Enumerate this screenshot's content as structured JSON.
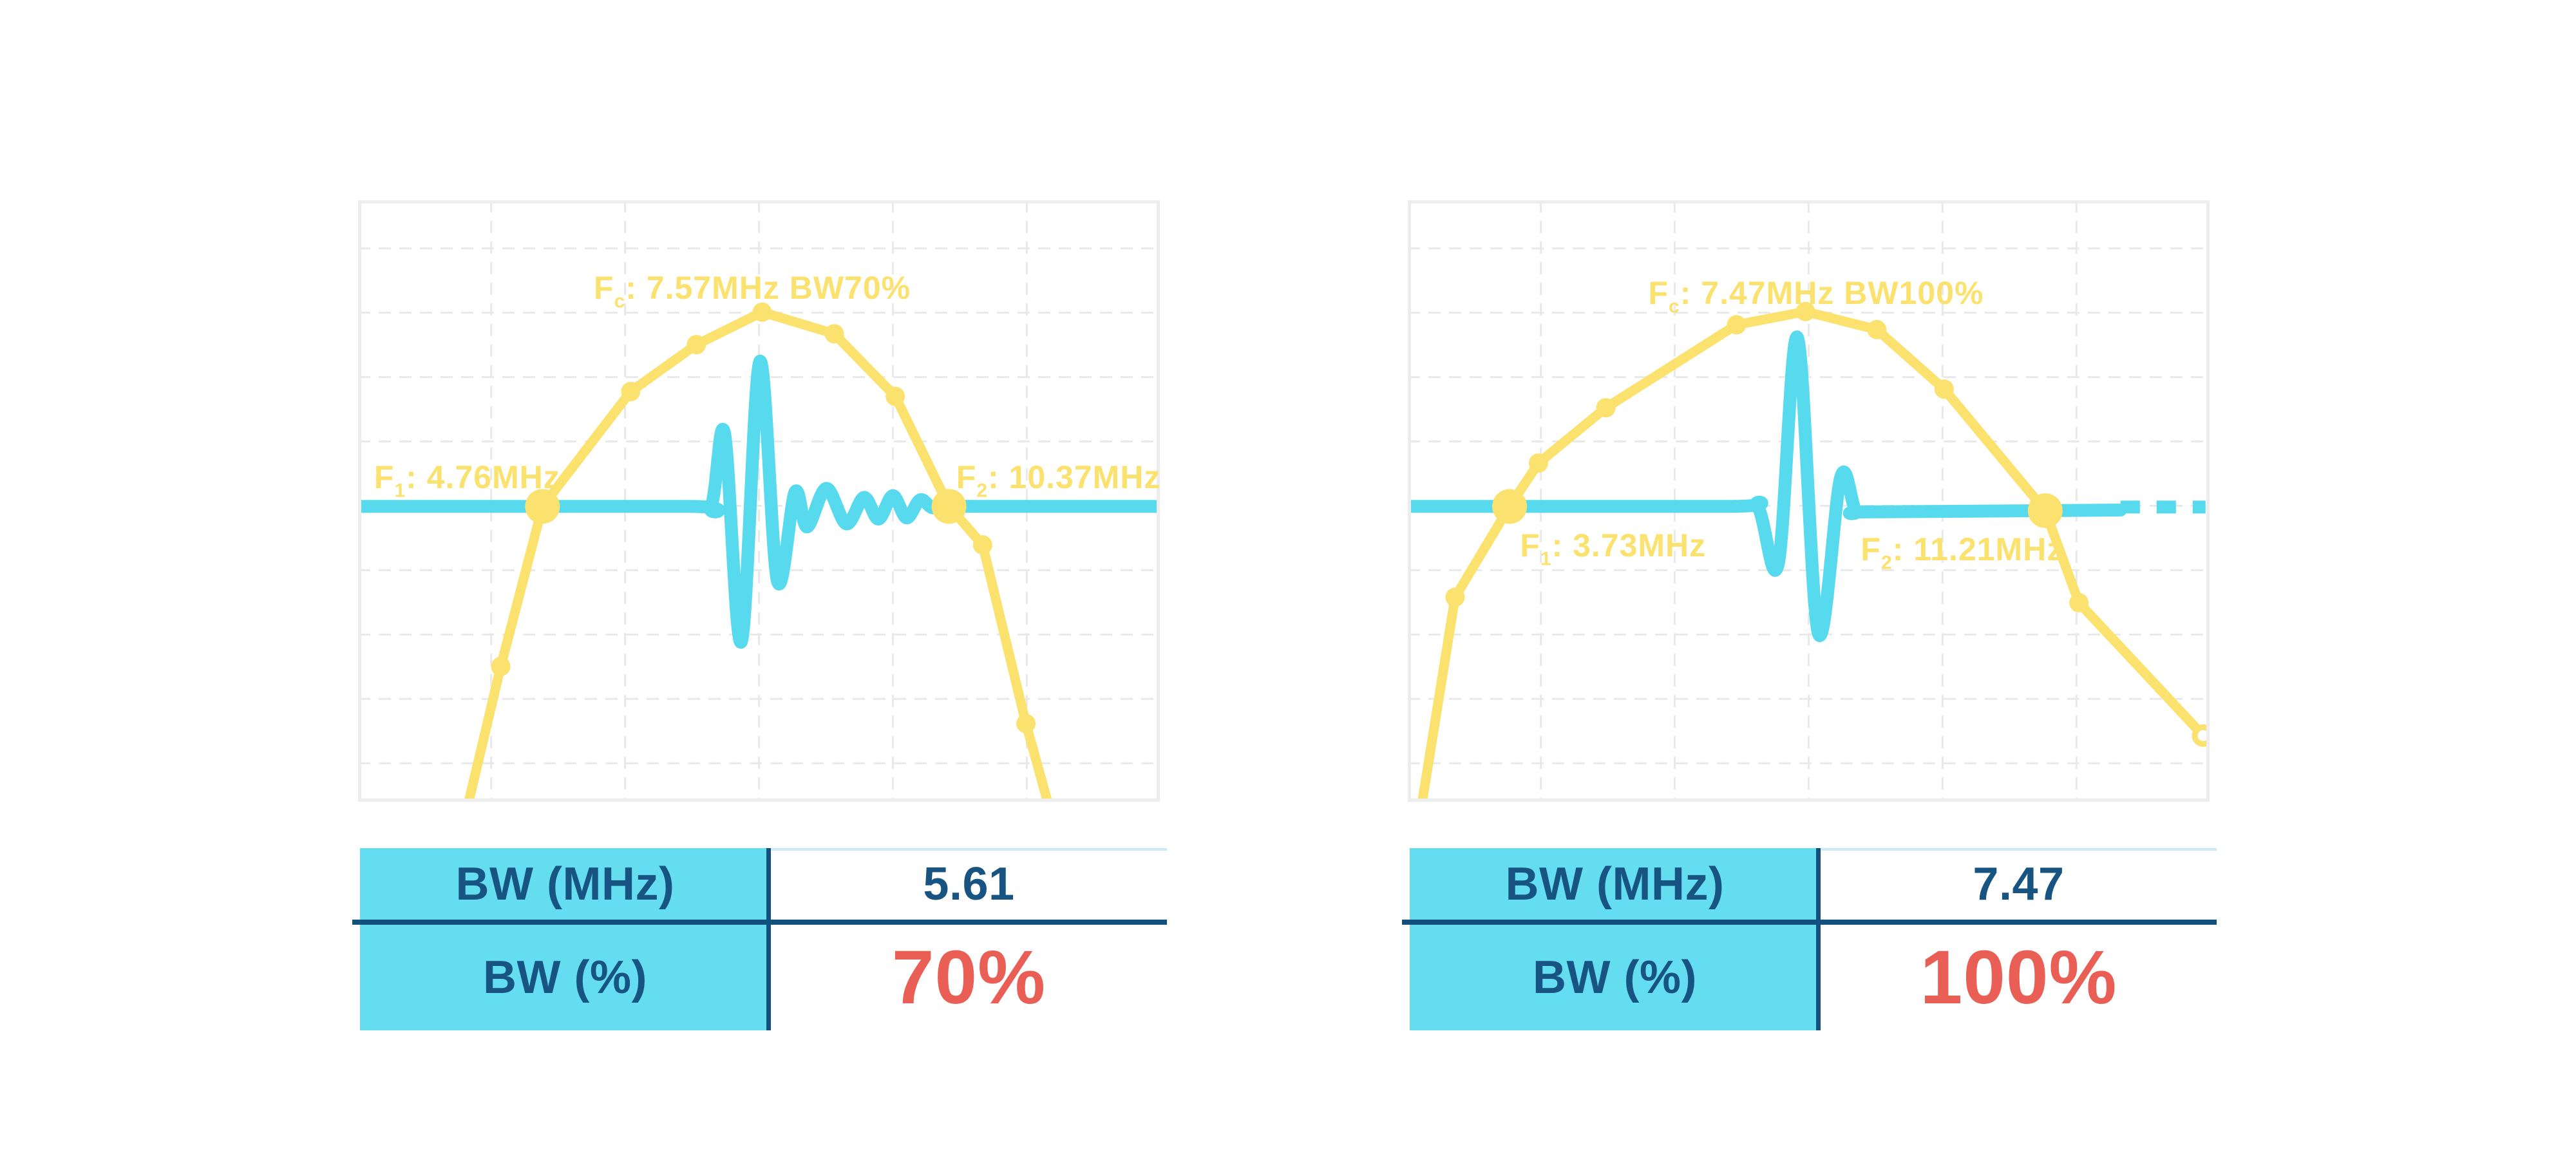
{
  "palette": {
    "yellow": "#FBE26E",
    "cyan": "#58DAEE",
    "table_cyan": "#63DDEF",
    "navy_text": "#175481",
    "navy_line": "#12517E",
    "red": "#EA5F55",
    "grid": "#E9E9E9",
    "plot_border": "#EDEDED",
    "value_col_top_border": "#CBEBF5"
  },
  "charts": [
    {
      "fc": {
        "f": "F",
        "sub": "c",
        "rest": ": 7.57MHz BW70%"
      },
      "f1": {
        "f": "F",
        "sub": "1",
        "rest": ": 4.76MHz"
      },
      "f2": {
        "f": "F",
        "sub": "2",
        "rest": ": 10.37MHz"
      },
      "table": {
        "rows": [
          {
            "label": "BW (MHz)",
            "value": "5.61"
          },
          {
            "label": "BW (%)",
            "value": "70%"
          }
        ]
      }
    },
    {
      "fc": {
        "f": "F",
        "sub": "c",
        "rest": ": 7.47MHz BW100%"
      },
      "f1": {
        "f": "F",
        "sub": "1",
        "rest": ": 3.73MHz"
      },
      "f2": {
        "f": "F",
        "sub": "2",
        "rest": ": 11.21MHz"
      },
      "table": {
        "rows": [
          {
            "label": "BW (MHz)",
            "value": "7.47"
          },
          {
            "label": "BW (%)",
            "value": "100%"
          }
        ]
      }
    }
  ],
  "chart_data": [
    {
      "type": "line",
      "title": "Fc: 7.57MHz BW70%",
      "fc_mhz": 7.57,
      "f1_mhz": 4.76,
      "f2_mhz": 10.37,
      "bw_mhz": 5.61,
      "bw_percent": 70,
      "axes_visible": false,
      "grid": {
        "x_pct": [
          16.6,
          33.3,
          50,
          66.7,
          83.4
        ],
        "y_pct": [
          8,
          18.7,
          29.4,
          40.1,
          50.8,
          61.5,
          72.2,
          82.9,
          93.6
        ]
      },
      "threshold_line_y_pct": 50.9,
      "series": [
        {
          "name": "spectrum",
          "color_key": "yellow",
          "points_pct": [
            [
              13.8,
              100
            ],
            [
              17.8,
              77.5
            ],
            [
              23,
              50.9
            ],
            [
              34,
              31.8
            ],
            [
              42.2,
              24
            ],
            [
              50.4,
              18.6
            ],
            [
              59.4,
              22.2
            ],
            [
              67,
              32.6
            ],
            [
              73.7,
              50.9
            ],
            [
              77.9,
              57.3
            ],
            [
              83.3,
              87
            ],
            [
              86,
              100
            ]
          ],
          "markers_small_pct": [
            [
              17.8,
              77.5
            ],
            [
              34,
              31.8
            ],
            [
              42.2,
              24
            ],
            [
              50.4,
              18.6
            ],
            [
              59.4,
              22.2
            ],
            [
              67,
              32.6
            ],
            [
              77.9,
              57.3
            ],
            [
              83.3,
              87
            ]
          ],
          "markers_big_pct": [
            [
              23,
              50.9
            ],
            [
              73.7,
              50.9
            ]
          ]
        },
        {
          "name": "pulse",
          "color_key": "cyan",
          "points_pct": [
            [
              0,
              50.9
            ],
            [
              41,
              50.9
            ],
            [
              44,
              50.9
            ],
            [
              45.7,
              38.7
            ],
            [
              47.8,
              73.4
            ],
            [
              50.1,
              26.8
            ],
            [
              52.3,
              63.3
            ],
            [
              54.5,
              48.5
            ],
            [
              56,
              54.3
            ],
            [
              58.4,
              47.9
            ],
            [
              60.9,
              53.8
            ],
            [
              63.1,
              49.4
            ],
            [
              64.9,
              53
            ],
            [
              66.7,
              49.1
            ],
            [
              68.4,
              52.8
            ],
            [
              70.1,
              49.8
            ],
            [
              71.6,
              51.1
            ],
            [
              73.4,
              50.9
            ],
            [
              80,
              50.9
            ],
            [
              100,
              50.9
            ]
          ]
        }
      ]
    },
    {
      "type": "line",
      "title": "Fc: 7.47MHz BW100%",
      "fc_mhz": 7.47,
      "f1_mhz": 3.73,
      "f2_mhz": 11.21,
      "bw_mhz": 7.47,
      "bw_percent": 100,
      "axes_visible": false,
      "grid": {
        "x_pct": [
          16.6,
          33.3,
          50,
          66.7,
          83.4
        ],
        "y_pct": [
          8,
          18.7,
          29.4,
          40.1,
          50.8,
          61.5,
          72.2,
          82.9,
          93.6
        ]
      },
      "threshold_line_y_pct": 50.9,
      "series": [
        {
          "name": "spectrum",
          "color_key": "yellow",
          "points_pct": [
            [
              1.8,
              100
            ],
            [
              5.9,
              66
            ],
            [
              12.7,
              50.9
            ],
            [
              16.3,
              43.7
            ],
            [
              24.7,
              34.5
            ],
            [
              41,
              20.7
            ],
            [
              49.6,
              18.5
            ],
            [
              58.5,
              21.5
            ],
            [
              66.9,
              31.4
            ],
            [
              79.5,
              51.6
            ],
            [
              83.7,
              66.9
            ],
            [
              99.2,
              89
            ]
          ],
          "markers_small_pct": [
            [
              5.9,
              66
            ],
            [
              16.3,
              43.7
            ],
            [
              24.7,
              34.5
            ],
            [
              41,
              20.7
            ],
            [
              49.6,
              18.5
            ],
            [
              58.5,
              21.5
            ],
            [
              66.9,
              31.4
            ],
            [
              83.7,
              66.9
            ]
          ],
          "markers_big_pct": [
            [
              12.7,
              50.9
            ],
            [
              79.5,
              51.6
            ]
          ],
          "marker_open_pct": [
            99.2,
            89
          ]
        },
        {
          "name": "pulse",
          "color_key": "cyan",
          "points_pct": [
            [
              0,
              50.9
            ],
            [
              40,
              50.9
            ],
            [
              43.6,
              50.9
            ],
            [
              46.2,
              60.5
            ],
            [
              48.6,
              22.8
            ],
            [
              51.2,
              72
            ],
            [
              54,
              46
            ],
            [
              55.9,
              51.6
            ],
            [
              58,
              51.8
            ],
            [
              88.9,
              51.5
            ]
          ],
          "dashed_tail_pct": [
            [
              88.9,
              51
            ],
            [
              99.5,
              51
            ]
          ]
        }
      ]
    }
  ]
}
